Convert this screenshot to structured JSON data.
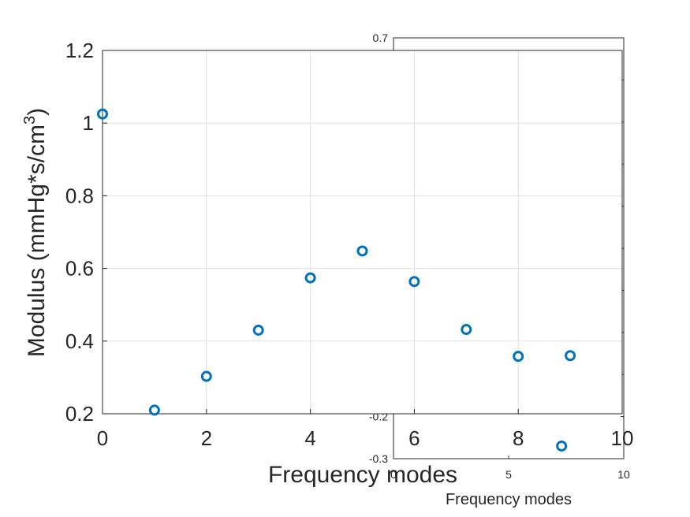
{
  "chart_data": [
    {
      "type": "scatter",
      "title": "",
      "xlabel": "Frequency modes",
      "ylabel_main": "Modulus (mmHg*s/cm",
      "ylabel_sup": "3",
      "ylabel_close": ")",
      "xlim": [
        0,
        10
      ],
      "ylim": [
        0.2,
        1.2
      ],
      "grid": true,
      "xticks": [
        0,
        2,
        4,
        6,
        8,
        10
      ],
      "xtick_labels": [
        "0",
        "2",
        "4",
        "6",
        "8",
        "10"
      ],
      "yticks": [
        0.2,
        0.4,
        0.6,
        0.8,
        1.0,
        1.2
      ],
      "ytick_labels": [
        "0.2",
        "0.4",
        "0.6",
        "0.8",
        "1",
        "1.2"
      ],
      "marker_color": "#0072BD",
      "series": [
        {
          "x": [
            0,
            1,
            2,
            3,
            4,
            5,
            6,
            7,
            8,
            9
          ],
          "y": [
            1.025,
            0.21,
            0.303,
            0.43,
            0.574,
            0.648,
            0.564,
            0.432,
            0.358,
            0.36
          ]
        }
      ]
    },
    {
      "type": "scatter",
      "title": "",
      "xlabel": "Frequency modes",
      "xlim": [
        0,
        10
      ],
      "ylim": [
        -0.3,
        0.7
      ],
      "xticks": [
        0,
        5,
        10
      ],
      "xtick_labels": [
        "0",
        "5",
        "10"
      ],
      "yticks": [
        -0.3,
        -0.2,
        0.7
      ],
      "ytick_labels": [
        "-0.3",
        "-0.2",
        "0.7"
      ],
      "marker_color": "#0072BD",
      "series": [
        {
          "x": [
            7.3
          ],
          "y": [
            -0.27
          ]
        }
      ]
    }
  ]
}
